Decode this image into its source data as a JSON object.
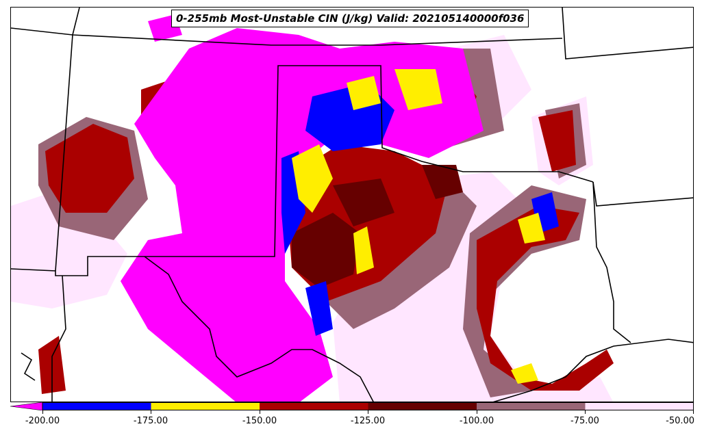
{
  "title": "0-255mb Most-Unstable CIN (J/kg) Valid: 202105140000f036",
  "legend": {
    "ticks": [
      "-200.00",
      "-175.00",
      "-150.00",
      "-125.00",
      "-100.00",
      "-75.00",
      "-50.00"
    ],
    "colors": [
      "#ff00ff",
      "#0000ff",
      "#ffee00",
      "#aa0000",
      "#660000",
      "#996677",
      "#ffe6ff"
    ],
    "range": [
      -200,
      -50
    ]
  },
  "map": {
    "region": "Southern Plains, USA",
    "field_colors": {
      "lt_-200": "#ff00ff",
      "-200_-175": "#0000ff",
      "-175_-150": "#ffee00",
      "-150_-125": "#aa0000",
      "-125_-100": "#660000",
      "-100_-75": "#996677",
      "-75_-50": "#ffe6ff"
    }
  }
}
